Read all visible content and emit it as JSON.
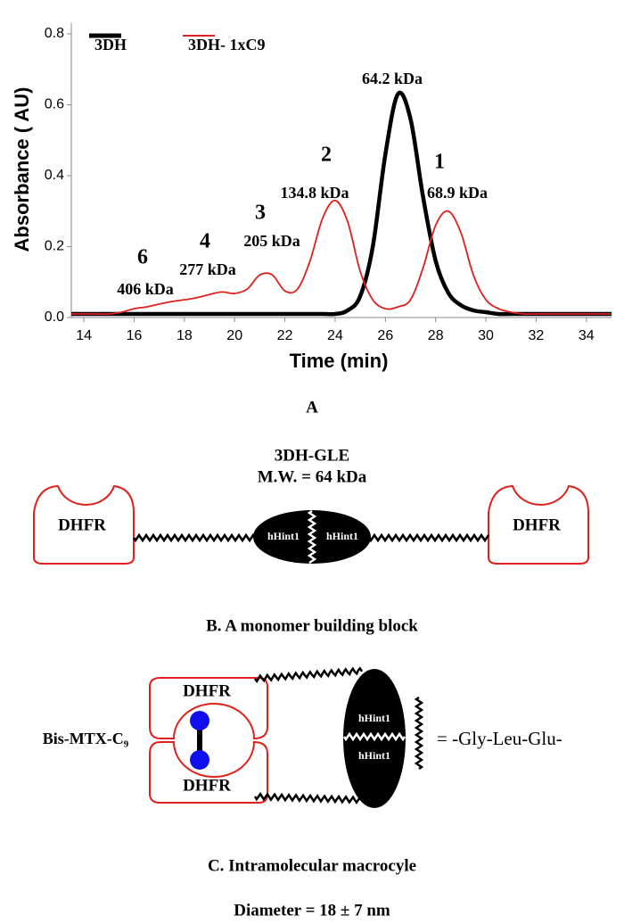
{
  "chart_data": {
    "type": "line",
    "x": [
      13.5,
      14,
      14.5,
      15,
      15.5,
      16,
      16.5,
      17,
      17.5,
      18,
      18.5,
      19,
      19.5,
      20,
      20.5,
      21,
      21.5,
      22,
      22.5,
      23,
      23.5,
      24,
      24.5,
      25,
      25.5,
      26,
      26.5,
      27,
      27.5,
      28,
      28.5,
      29,
      29.5,
      30,
      30.5,
      31,
      31.5,
      32,
      32.5,
      33,
      33.5,
      34,
      34.5,
      35
    ],
    "series": [
      {
        "name": "3DH",
        "color": "#000000",
        "values": [
          0.01,
          0.01,
          0.01,
          0.01,
          0.01,
          0.01,
          0.01,
          0.01,
          0.01,
          0.01,
          0.01,
          0.01,
          0.01,
          0.01,
          0.01,
          0.01,
          0.01,
          0.01,
          0.01,
          0.01,
          0.01,
          0.01,
          0.02,
          0.06,
          0.2,
          0.46,
          0.63,
          0.56,
          0.34,
          0.16,
          0.07,
          0.035,
          0.02,
          0.015,
          0.01,
          0.01,
          0.01,
          0.01,
          0.01,
          0.01,
          0.01,
          0.01,
          0.01,
          0.01
        ]
      },
      {
        "name": "3DH- 1xC9",
        "color": "#e0201b",
        "values": [
          0.01,
          0.01,
          0.01,
          0.01,
          0.015,
          0.025,
          0.03,
          0.038,
          0.045,
          0.05,
          0.056,
          0.065,
          0.072,
          0.068,
          0.08,
          0.12,
          0.12,
          0.075,
          0.08,
          0.16,
          0.28,
          0.33,
          0.27,
          0.13,
          0.05,
          0.025,
          0.03,
          0.05,
          0.14,
          0.26,
          0.3,
          0.24,
          0.12,
          0.05,
          0.025,
          0.015,
          0.01,
          0.01,
          0.01,
          0.01,
          0.01,
          0.01,
          0.01,
          0.01
        ]
      }
    ],
    "xlim": [
      13.5,
      35
    ],
    "ylim": [
      0,
      0.83
    ],
    "xticks": [
      14,
      16,
      18,
      20,
      22,
      24,
      26,
      28,
      30,
      32,
      34
    ],
    "yticks": [
      {
        "value": 0,
        "label": "0.0"
      },
      0.2,
      0.4,
      0.6,
      0.8
    ],
    "xlabel": "Time (min)",
    "ylabel": "Absorbance ( AU)",
    "legend": "top left",
    "annotations": [
      "64.2 kDa",
      "1",
      "68.9 kDa",
      "2",
      "134.8 kDa",
      "3",
      "205 kDa",
      "4",
      "277 kDa",
      "6",
      "406 kDa"
    ]
  },
  "panel_a_label": "A",
  "diagram_b": {
    "title": "3DH-GLE",
    "subtitle": "M.W. = 64 kDa",
    "left_domain": "DHFR",
    "right_domain": "DHFR",
    "core_left": "hHint1",
    "core_right": "hHint1",
    "caption": "B. A monomer building block"
  },
  "diagram_c": {
    "top_domain": "DHFR",
    "bottom_domain": "DHFR",
    "ligand": "Bis-MTX-C₉",
    "core_top": "hHint1",
    "core_bottom": "hHint1",
    "linker_legend": "= -Gly-Leu-Glu-",
    "caption": "C. Intramolecular macrocyle",
    "diameter": "Diameter = 18 ± 7 nm"
  }
}
